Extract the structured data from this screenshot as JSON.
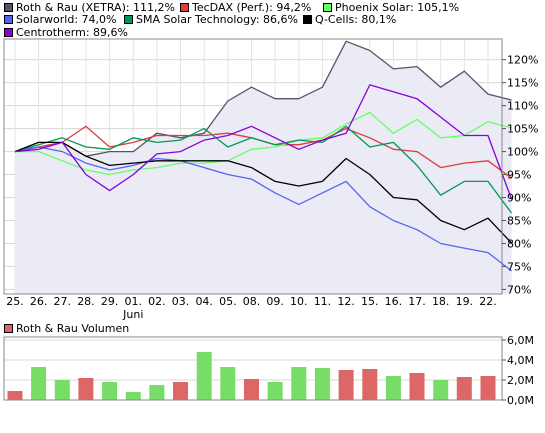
{
  "chart_data": [
    {
      "type": "line",
      "title": "",
      "legend_placement": "top",
      "grid": true,
      "x_labels": [
        "25.",
        "26.",
        "27.",
        "28.",
        "29.",
        "01.",
        "02.",
        "03.",
        "04.",
        "05.",
        "08.",
        "09.",
        "10.",
        "11.",
        "12.",
        "15.",
        "16.",
        "17.",
        "18.",
        "19.",
        "22."
      ],
      "x_sublabel": {
        "index": 5,
        "text": "Juni"
      },
      "y_ticks": [
        "70%",
        "75%",
        "80%",
        "85%",
        "90%",
        "95%",
        "100%",
        "105%",
        "110%",
        "115%",
        "120%"
      ],
      "y_tick_values": [
        70,
        75,
        80,
        85,
        90,
        95,
        100,
        105,
        110,
        115,
        120
      ],
      "ylim": [
        69,
        124.5
      ],
      "series": [
        {
          "name": "Roth & Rau (XETRA): 111,2%",
          "color": "#555566",
          "fill": "#ebebf5",
          "values": [
            100,
            101,
            102,
            99,
            100,
            100,
            104,
            103,
            104,
            111,
            114,
            111.5,
            111.5,
            114,
            124,
            122,
            118,
            118.5,
            114,
            117.5,
            112.5,
            111.2
          ]
        },
        {
          "name": "TecDAX (Perf.): 94,2%",
          "color": "#e03c3c",
          "values": [
            100,
            101,
            102,
            105.5,
            101,
            102,
            103.5,
            103.5,
            103.5,
            104,
            103,
            101.5,
            101.5,
            102.5,
            105,
            103,
            100.5,
            100,
            96.5,
            97.5,
            98,
            94.2
          ]
        },
        {
          "name": "Phoenix Solar: 105,1%",
          "color": "#66ff66",
          "values": [
            100,
            100,
            98,
            96,
            95,
            96,
            96.5,
            97.5,
            97.5,
            98,
            100.5,
            101,
            102.5,
            103,
            106,
            108.5,
            104,
            107,
            103,
            103.5,
            106.5,
            105.1
          ]
        },
        {
          "name": "Solarworld: 74,0%",
          "color": "#5566ee",
          "values": [
            100,
            101,
            100,
            97.5,
            96,
            97,
            98.5,
            98,
            96.5,
            95,
            94,
            91,
            88.5,
            91,
            93.5,
            88,
            85,
            83,
            80,
            79,
            78,
            74
          ]
        },
        {
          "name": "SMA Solar Technology: 86,6%",
          "color": "#009955",
          "values": [
            100,
            101.5,
            103,
            101,
            100.5,
            103,
            102,
            102.5,
            105,
            101,
            103,
            101.5,
            102.5,
            102,
            105.5,
            101,
            102,
            97,
            90.5,
            93.5,
            93.5,
            86.6
          ]
        },
        {
          "name": "Q-Cells: 80,1%",
          "color": "#000000",
          "values": [
            100,
            102,
            102,
            99,
            97,
            97.5,
            98,
            98,
            98,
            98,
            96.5,
            93.5,
            92.5,
            93.5,
            98.5,
            95,
            90,
            89.5,
            85,
            83,
            85.5,
            80.1
          ]
        },
        {
          "name": "Centrotherm: 89,6%",
          "color": "#8800dd",
          "values": [
            100,
            100.5,
            102,
            95,
            91.5,
            95,
            99.5,
            100,
            102.5,
            103.5,
            105.5,
            103,
            100.5,
            102.5,
            104,
            114.5,
            113,
            111.5,
            107.5,
            103.5,
            103.5,
            89.6
          ]
        }
      ]
    },
    {
      "type": "bar",
      "title": "Roth & Rau Volumen",
      "y_ticks": [
        "0,0M",
        "2,0M",
        "4,0M",
        "6,0M"
      ],
      "y_tick_values": [
        0,
        2,
        4,
        6
      ],
      "ylim": [
        0,
        6.3
      ],
      "up_color": "#77dd66",
      "down_color": "#dd6666",
      "values": [
        0.9,
        3.3,
        2.0,
        2.2,
        1.8,
        0.8,
        1.5,
        1.8,
        4.8,
        3.3,
        2.1,
        1.8,
        3.3,
        3.2,
        3.0,
        3.1,
        2.4,
        2.7,
        2.0,
        2.3,
        2.4
      ],
      "directions": [
        "down",
        "up",
        "up",
        "down",
        "up",
        "up",
        "up",
        "down",
        "up",
        "up",
        "down",
        "up",
        "up",
        "up",
        "down",
        "down",
        "up",
        "down",
        "up",
        "down",
        "down"
      ]
    }
  ]
}
